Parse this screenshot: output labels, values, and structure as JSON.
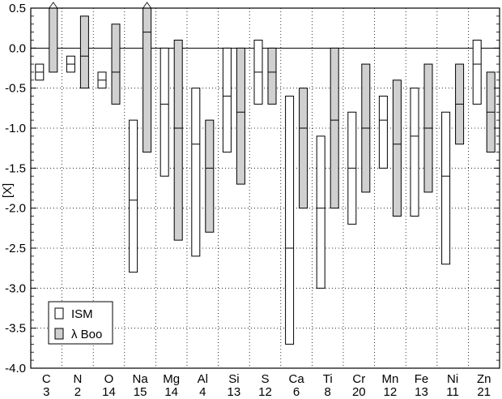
{
  "chart_data": {
    "type": "bar",
    "ylabel": "[X]",
    "ylim": [
      -4.0,
      0.5
    ],
    "yticks": [
      "0.5",
      "0.0",
      "-0.5",
      "-1.0",
      "-1.5",
      "-2.0",
      "-2.5",
      "-3.0",
      "-3.5",
      "-4.0"
    ],
    "ytick_values": [
      0.5,
      0.0,
      -0.5,
      -1.0,
      -1.5,
      -2.0,
      -2.5,
      -3.0,
      -3.5,
      -4.0
    ],
    "grid": true,
    "legend_position": "bottom-left",
    "categories": [
      "C",
      "N",
      "O",
      "Na",
      "Mg",
      "Al",
      "Si",
      "S",
      "Ca",
      "Ti",
      "Cr",
      "Mn",
      "Fe",
      "Ni",
      "Zn"
    ],
    "counts": [
      "3",
      "2",
      "14",
      "15",
      "14",
      "4",
      "13",
      "12",
      "6",
      "8",
      "20",
      "12",
      "13",
      "11",
      "21"
    ],
    "series": [
      {
        "name": "ISM",
        "color": "#ffffff",
        "low": [
          -0.4,
          -0.3,
          -0.5,
          -2.8,
          -1.6,
          -2.6,
          -1.3,
          -0.7,
          -3.7,
          -3.0,
          -2.2,
          -1.5,
          -2.1,
          -2.7,
          -0.7
        ],
        "high": [
          -0.2,
          -0.1,
          -0.3,
          -0.9,
          0.0,
          -0.5,
          0.0,
          0.1,
          -0.6,
          -1.1,
          -0.8,
          -0.6,
          -0.5,
          -0.8,
          0.1
        ],
        "mid": [
          -0.3,
          -0.2,
          -0.4,
          -1.9,
          -0.7,
          -1.2,
          -0.6,
          -0.3,
          -2.5,
          -2.0,
          -1.5,
          -0.9,
          -1.1,
          -1.6,
          -0.2
        ]
      },
      {
        "name": "λ Boo",
        "color": "#d0d0d0",
        "low": [
          -0.3,
          -0.5,
          -0.7,
          -1.3,
          -2.4,
          -2.3,
          -1.7,
          -0.7,
          -2.0,
          -2.0,
          -1.8,
          -2.1,
          -1.8,
          -1.2,
          -1.3
        ],
        "high": [
          0.5,
          0.4,
          0.3,
          0.5,
          0.1,
          -0.9,
          0.0,
          0.0,
          -0.5,
          0.0,
          -0.2,
          -0.4,
          -0.2,
          -0.2,
          -0.3
        ],
        "mid": [
          null,
          -0.1,
          -0.3,
          0.2,
          -1.0,
          -1.5,
          -0.8,
          -0.3,
          -1.0,
          -0.9,
          -1.0,
          -1.2,
          -1.0,
          -0.7,
          -0.8
        ],
        "open_top": [
          true,
          false,
          false,
          true,
          false,
          false,
          false,
          false,
          false,
          false,
          false,
          false,
          false,
          false,
          false
        ]
      }
    ]
  }
}
